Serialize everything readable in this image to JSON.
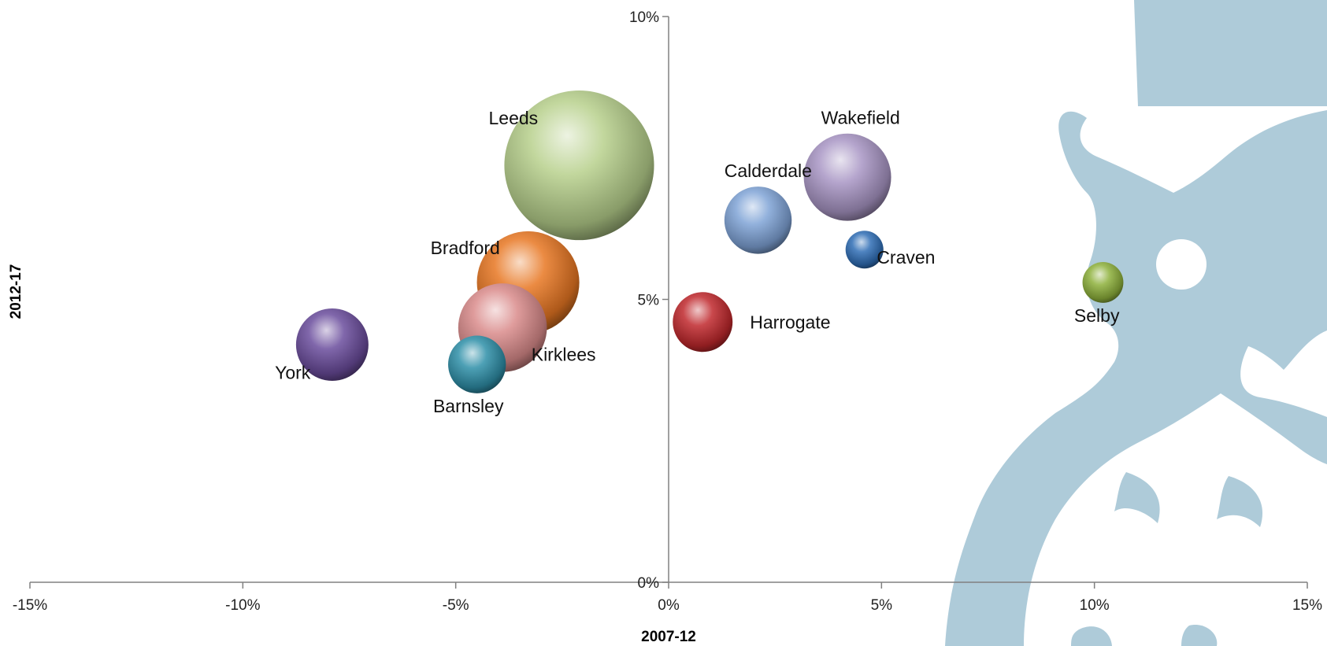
{
  "chart_data": {
    "type": "bubble",
    "title": "",
    "xlabel": "2007-12",
    "ylabel": "2012-17",
    "xlim": [
      -0.15,
      0.15
    ],
    "ylim": [
      0,
      0.1
    ],
    "x_ticks": [
      {
        "value": -0.15,
        "label": "-15%"
      },
      {
        "value": -0.1,
        "label": "-10%"
      },
      {
        "value": -0.05,
        "label": "-5%"
      },
      {
        "value": 0.0,
        "label": "0%"
      },
      {
        "value": 0.05,
        "label": "5%"
      },
      {
        "value": 0.1,
        "label": "10%"
      },
      {
        "value": 0.15,
        "label": "15%"
      }
    ],
    "y_ticks": [
      {
        "value": 0.0,
        "label": "0%"
      },
      {
        "value": 0.05,
        "label": "5%"
      },
      {
        "value": 0.1,
        "label": "10%"
      }
    ],
    "grid": false,
    "legend": "none",
    "bubble_size_unit": "relative",
    "points": [
      {
        "name": "Leeds",
        "x": -0.021,
        "y": 0.0737,
        "size": 9.4,
        "color": "#b7d08c",
        "label_pos": "upper-left"
      },
      {
        "name": "Bradford",
        "x": -0.033,
        "y": 0.053,
        "size": 4.4,
        "color": "#e87722",
        "label_pos": "upper-left"
      },
      {
        "name": "Kirklees",
        "x": -0.039,
        "y": 0.045,
        "size": 3.3,
        "color": "#d98a8a",
        "label_pos": "lower-right"
      },
      {
        "name": "Barnsley",
        "x": -0.045,
        "y": 0.0385,
        "size": 1.4,
        "color": "#2e8fa8",
        "label_pos": "below"
      },
      {
        "name": "York",
        "x": -0.079,
        "y": 0.042,
        "size": 2.2,
        "color": "#6a4c9c",
        "label_pos": "lower-left"
      },
      {
        "name": "Calderdale",
        "x": 0.021,
        "y": 0.064,
        "size": 1.9,
        "color": "#7fa3d6",
        "label_pos": "above"
      },
      {
        "name": "Wakefield",
        "x": 0.042,
        "y": 0.0716,
        "size": 3.2,
        "color": "#a895c4",
        "label_pos": "above"
      },
      {
        "name": "Craven",
        "x": 0.046,
        "y": 0.0588,
        "size": 0.6,
        "color": "#2f6db5",
        "label_pos": "lower-right"
      },
      {
        "name": "Harrogate",
        "x": 0.008,
        "y": 0.046,
        "size": 1.5,
        "color": "#c0282c",
        "label_pos": "right"
      },
      {
        "name": "Selby",
        "x": 0.102,
        "y": 0.053,
        "size": 0.7,
        "color": "#8db03a",
        "label_pos": "below"
      }
    ]
  },
  "watermark": {
    "color": "#aecbd9"
  }
}
